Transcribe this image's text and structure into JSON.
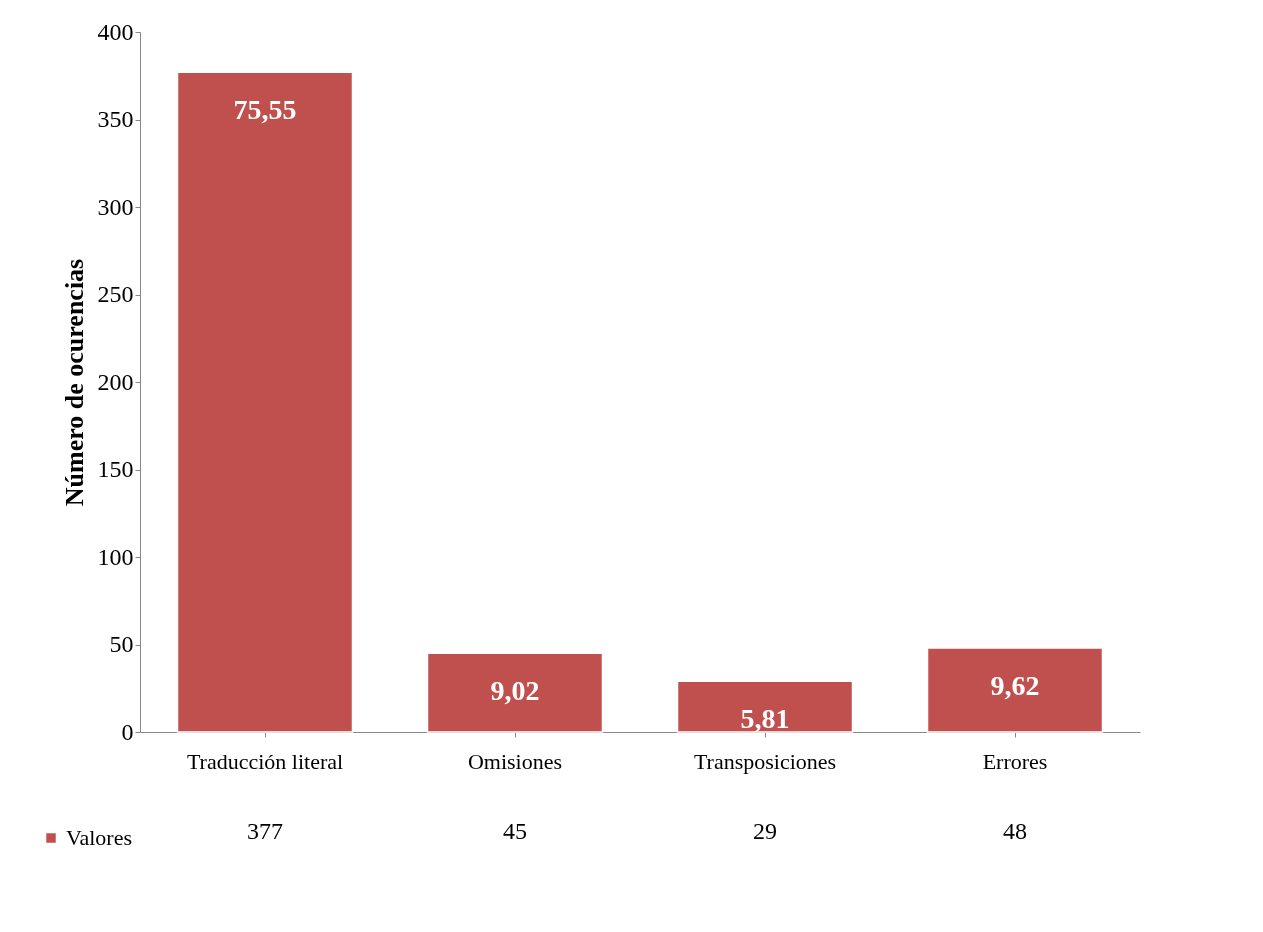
{
  "chart_data": {
    "type": "bar",
    "ylabel": "Número de ocurencias",
    "categories": [
      "Traducción literal",
      "Omisiones",
      "Transposiciones",
      "Errores"
    ],
    "series": [
      {
        "name": "Valores",
        "color": "#c0504d",
        "values": [
          377,
          45,
          29,
          48
        ]
      }
    ],
    "annotations": [
      {
        "text": "75,55",
        "x": "Traducción literal",
        "y": 377
      },
      {
        "text": "9,02",
        "x": "Omisiones",
        "y": 45
      },
      {
        "text": "5,81",
        "x": "Transposiciones",
        "y": 29
      },
      {
        "text": "9,62",
        "x": "Errores",
        "y": 48
      }
    ],
    "ylim": [
      0,
      400
    ],
    "yticks": [
      0,
      50,
      100,
      150,
      200,
      250,
      300,
      350,
      400
    ],
    "data_labels": true,
    "legend": "bottom left"
  }
}
